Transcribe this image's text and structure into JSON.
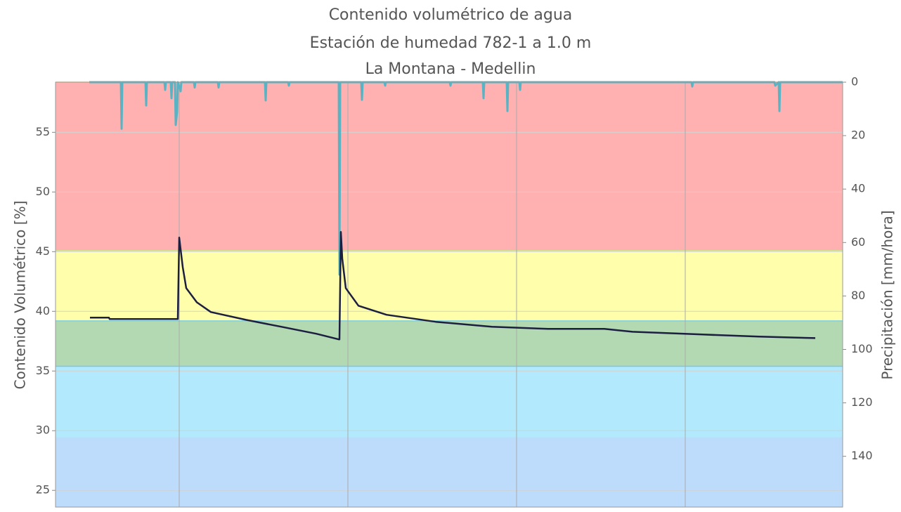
{
  "chart_data": {
    "type": "line",
    "title": [
      "Contenido volumétrico de agua",
      "Estación de humedad 782-1 a 1.0 m",
      "La Montana - Medellin"
    ],
    "ylabel": "Contenido Volumétrico [%]",
    "y2label": "Precipitación [mm/hora]",
    "xlim": [
      0,
      112
    ],
    "xticks": [
      17.6,
      41.6,
      65.6,
      89.6
    ],
    "ylim": [
      23.6,
      59.2
    ],
    "yticks": [
      25,
      30,
      35,
      40,
      45,
      50,
      55
    ],
    "y2lim": [
      0,
      159
    ],
    "y2ticks": [
      0,
      20,
      40,
      60,
      80,
      100,
      120,
      140
    ],
    "y2_inverted": true,
    "grid": true,
    "bands": [
      {
        "from": 45.1,
        "to": 59.2,
        "color": "#ffb1b1",
        "edge": "#f6c38a"
      },
      {
        "from": 39.2,
        "to": 45.1,
        "color": "#ffffab",
        "edge": "#c9d98a"
      },
      {
        "from": 35.4,
        "to": 39.2,
        "color": "#b3d9b3",
        "edge": "#7fd0e0"
      },
      {
        "from": 29.4,
        "to": 35.4,
        "color": "#b3e9fc",
        "edge": "#7cc3f0"
      },
      {
        "from": 23.6,
        "to": 29.4,
        "color": "#bddcfc",
        "edge": "#bddcfc"
      }
    ],
    "series": [
      {
        "name": "Precipitación",
        "axis": "y2",
        "color": "#5ab3c3",
        "x": [
          4.8,
          9.3,
          9.4,
          9.5,
          12.8,
          12.9,
          13.0,
          15.5,
          15.6,
          15.7,
          16.4,
          16.5,
          16.6,
          17.0,
          17.1,
          17.3,
          17.4,
          17.8,
          17.9,
          19.7,
          19.8,
          19.9,
          23.1,
          23.2,
          23.3,
          29.8,
          29.9,
          30.0,
          33.1,
          33.2,
          33.3,
          40.3,
          40.4,
          40.5,
          43.5,
          43.6,
          43.7,
          46.8,
          46.9,
          47.0,
          56.1,
          56.2,
          56.3,
          60.8,
          60.9,
          61.0,
          64.2,
          64.3,
          64.4,
          66.0,
          66.1,
          66.2,
          90.5,
          90.6,
          90.7,
          102.3,
          102.4,
          102.9,
          103.0,
          103.1,
          112
        ],
        "values": [
          0,
          0,
          17.4,
          0,
          0,
          8.7,
          0,
          0,
          2.9,
          0,
          0,
          6,
          0,
          0,
          16,
          11,
          0,
          3.4,
          0,
          0,
          2,
          0,
          0,
          2,
          0,
          0,
          6.8,
          0,
          0,
          1.3,
          0,
          0,
          72,
          0,
          0,
          6.6,
          0,
          0,
          1.3,
          0,
          0,
          1.3,
          0,
          0,
          6,
          0,
          0,
          10.8,
          0,
          0,
          2.9,
          0,
          0,
          1.6,
          0,
          0,
          1.3,
          0,
          10.8,
          0,
          0
        ]
      },
      {
        "name": "Contenido volumétrico",
        "axis": "y",
        "color": "#1c1f3f",
        "x": [
          4.9,
          7.6,
          7.7,
          17.4,
          17.6,
          18.1,
          18.6,
          20.1,
          22.1,
          27.1,
          32.1,
          37.1,
          40.3,
          40.4,
          40.6,
          40.8,
          41.3,
          43.1,
          47.1,
          54.1,
          62.1,
          70.1,
          78.1,
          82.1,
          92.1,
          100.1,
          108.1
        ],
        "values": [
          39.47,
          39.47,
          39.35,
          39.35,
          46.18,
          43.71,
          41.94,
          40.76,
          39.94,
          39.29,
          38.71,
          38.12,
          37.65,
          37.65,
          46.65,
          44.41,
          41.94,
          40.47,
          39.71,
          39.12,
          38.71,
          38.53,
          38.53,
          38.29,
          38.06,
          37.88,
          37.76
        ]
      }
    ]
  }
}
